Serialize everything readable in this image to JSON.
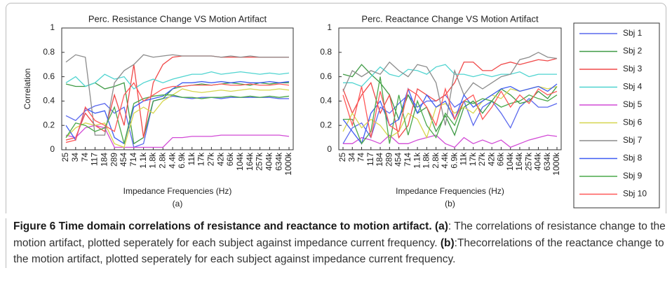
{
  "chart_data": [
    {
      "type": "line",
      "title": "Perc. Resistance Change VS Motion Artifact",
      "x_label": "Impedance Frequencies (Hz)",
      "sublabel": "(a)",
      "y_label": "Correlation",
      "categories": [
        "25",
        "34",
        "74",
        "117",
        "184",
        "289",
        "454",
        "714",
        "1.1k",
        "1.8k",
        "2.8k",
        "4.4k",
        "6.9k",
        "11k",
        "17k",
        "27k",
        "42k",
        "66k",
        "104k",
        "164k",
        "257k",
        "404k",
        "634k",
        "1000k"
      ],
      "ylim": [
        0,
        1
      ],
      "yticks": [
        0,
        0.2,
        0.4,
        0.6,
        0.8,
        1
      ],
      "series": [
        {
          "name": "Sbj 1",
          "color": "#5a68ee",
          "values": [
            0.28,
            0.24,
            0.32,
            0.36,
            0.38,
            0.3,
            0.35,
            0.02,
            0.05,
            0.4,
            0.42,
            0.44,
            0.43,
            0.42,
            0.43,
            0.43,
            0.42,
            0.43,
            0.43,
            0.43,
            0.43,
            0.43,
            0.42,
            0.42
          ]
        },
        {
          "name": "Sbj 2",
          "color": "#3f9a45",
          "values": [
            0.54,
            0.52,
            0.52,
            0.55,
            0.5,
            0.52,
            0.55,
            0.05,
            0.1,
            0.4,
            0.42,
            0.5,
            0.52,
            0.53,
            0.54,
            0.53,
            0.54,
            0.55,
            0.54,
            0.53,
            0.55,
            0.54,
            0.55,
            0.55
          ]
        },
        {
          "name": "Sbj 3",
          "color": "#f04848",
          "values": [
            0.08,
            0.1,
            0.3,
            0.2,
            0.15,
            0.45,
            0.2,
            0.7,
            0.1,
            0.55,
            0.7,
            0.76,
            0.77,
            0.77,
            0.77,
            0.77,
            0.76,
            0.76,
            0.76,
            0.76,
            0.76,
            0.76,
            0.76,
            0.76
          ]
        },
        {
          "name": "Sbj 4",
          "color": "#4fd4d0",
          "values": [
            0.55,
            0.6,
            0.52,
            0.55,
            0.62,
            0.58,
            0.6,
            0.5,
            0.55,
            0.58,
            0.55,
            0.58,
            0.6,
            0.62,
            0.62,
            0.64,
            0.62,
            0.63,
            0.64,
            0.63,
            0.62,
            0.63,
            0.62,
            0.63
          ]
        },
        {
          "name": "Sbj 5",
          "color": "#d24ad6",
          "values": [
            0.12,
            0.1,
            0.18,
            0.2,
            0.18,
            0.02,
            0.02,
            0.02,
            0.02,
            0.02,
            0.02,
            0.1,
            0.1,
            0.11,
            0.11,
            0.11,
            0.12,
            0.12,
            0.12,
            0.12,
            0.12,
            0.12,
            0.12,
            0.11
          ]
        },
        {
          "name": "Sbj 6",
          "color": "#d6d64e",
          "values": [
            0.1,
            0.18,
            0.22,
            0.2,
            0.22,
            0.05,
            0.02,
            0.3,
            0.35,
            0.3,
            0.4,
            0.45,
            0.5,
            0.48,
            0.47,
            0.48,
            0.49,
            0.48,
            0.49,
            0.5,
            0.49,
            0.49,
            0.5,
            0.49
          ]
        },
        {
          "name": "Sbj 7",
          "color": "#8c8c8c",
          "values": [
            0.72,
            0.78,
            0.76,
            0.12,
            0.12,
            0.55,
            0.65,
            0.7,
            0.78,
            0.76,
            0.77,
            0.78,
            0.77,
            0.77,
            0.77,
            0.77,
            0.76,
            0.77,
            0.76,
            0.77,
            0.76,
            0.76,
            0.76,
            0.76
          ]
        },
        {
          "name": "Sbj 8",
          "color": "#3e5cf2",
          "values": [
            0.2,
            0.08,
            0.34,
            0.3,
            0.32,
            0.1,
            0.05,
            0.35,
            0.4,
            0.42,
            0.44,
            0.5,
            0.55,
            0.55,
            0.56,
            0.55,
            0.56,
            0.55,
            0.56,
            0.55,
            0.55,
            0.56,
            0.55,
            0.56
          ]
        },
        {
          "name": "Sbj 9",
          "color": "#4aa84a",
          "values": [
            0.1,
            0.22,
            0.2,
            0.15,
            0.18,
            0.35,
            0.05,
            0.38,
            0.42,
            0.44,
            0.45,
            0.45,
            0.43,
            0.43,
            0.42,
            0.43,
            0.43,
            0.44,
            0.43,
            0.44,
            0.43,
            0.44,
            0.43,
            0.44
          ]
        },
        {
          "name": "Sbj 10",
          "color": "#ff5858",
          "values": [
            0.06,
            0.08,
            0.35,
            0.24,
            0.2,
            0.15,
            0.45,
            0.55,
            0.4,
            0.45,
            0.5,
            0.52,
            0.52,
            0.53,
            0.53,
            0.53,
            0.54,
            0.53,
            0.53,
            0.54,
            0.53,
            0.53,
            0.54,
            0.53
          ]
        }
      ]
    },
    {
      "type": "line",
      "title": "Perc. Reactance Change VS Motion Artifact",
      "x_label": "Impedance Frequencies (Hz)",
      "sublabel": "(b)",
      "categories": [
        "25",
        "34",
        "74",
        "117",
        "184",
        "289",
        "454",
        "714",
        "1.1k",
        "1.8k",
        "2.8k",
        "4.4k",
        "6.9k",
        "11k",
        "17k",
        "27k",
        "42k",
        "66k",
        "104k",
        "164k",
        "257k",
        "404k",
        "634k",
        "1000k"
      ],
      "ylim": [
        0,
        1
      ],
      "yticks": [
        0,
        0.2,
        0.4,
        0.6,
        0.8,
        1
      ],
      "series": [
        {
          "name": "Sbj 1",
          "color": "#5a68ee",
          "values": [
            0.05,
            0.18,
            0.22,
            0.1,
            0.35,
            0.3,
            0.38,
            0.45,
            0.35,
            0.4,
            0.4,
            0.45,
            0.35,
            0.4,
            0.2,
            0.35,
            0.4,
            0.3,
            0.18,
            0.35,
            0.42,
            0.35,
            0.35,
            0.38
          ]
        },
        {
          "name": "Sbj 2",
          "color": "#3f9a45",
          "values": [
            0.62,
            0.6,
            0.7,
            0.62,
            0.55,
            0.45,
            0.25,
            0.45,
            0.3,
            0.35,
            0.15,
            0.28,
            0.12,
            0.35,
            0.4,
            0.3,
            0.4,
            0.5,
            0.45,
            0.38,
            0.4,
            0.48,
            0.42,
            0.52
          ]
        },
        {
          "name": "Sbj 3",
          "color": "#f04848",
          "values": [
            0.5,
            0.3,
            0.45,
            0.55,
            0.3,
            0.45,
            0.1,
            0.2,
            0.5,
            0.45,
            0.4,
            0.45,
            0.55,
            0.72,
            0.72,
            0.65,
            0.65,
            0.7,
            0.72,
            0.7,
            0.72,
            0.74,
            0.73,
            0.75
          ]
        },
        {
          "name": "Sbj 4",
          "color": "#4fd4d0",
          "values": [
            0.55,
            0.55,
            0.52,
            0.6,
            0.68,
            0.62,
            0.6,
            0.66,
            0.65,
            0.62,
            0.68,
            0.7,
            0.62,
            0.62,
            0.6,
            0.62,
            0.6,
            0.62,
            0.62,
            0.64,
            0.6,
            0.62,
            0.62,
            0.62
          ]
        },
        {
          "name": "Sbj 5",
          "color": "#d24ad6",
          "values": [
            0.05,
            0.05,
            0.1,
            0.08,
            0.05,
            0.12,
            0.05,
            0.05,
            0.08,
            0.1,
            0.12,
            0.05,
            0.02,
            0.1,
            0.05,
            0.08,
            0.05,
            0.08,
            0.02,
            0.05,
            0.08,
            0.1,
            0.12,
            0.11
          ]
        },
        {
          "name": "Sbj 6",
          "color": "#d6d64e",
          "values": [
            0.15,
            0.3,
            0.18,
            0.25,
            0.2,
            0.1,
            0.15,
            0.3,
            0.25,
            0.1,
            0.35,
            0.38,
            0.3,
            0.35,
            0.3,
            0.4,
            0.45,
            0.42,
            0.5,
            0.48,
            0.5,
            0.52,
            0.5,
            0.52
          ]
        },
        {
          "name": "Sbj 7",
          "color": "#8c8c8c",
          "values": [
            0.48,
            0.65,
            0.6,
            0.65,
            0.62,
            0.72,
            0.65,
            0.6,
            0.7,
            0.68,
            0.55,
            0.2,
            0.65,
            0.45,
            0.55,
            0.5,
            0.55,
            0.6,
            0.62,
            0.74,
            0.76,
            0.8,
            0.76,
            0.75
          ]
        },
        {
          "name": "Sbj 8",
          "color": "#3e5cf2",
          "values": [
            0.25,
            0.15,
            0.05,
            0.3,
            0.4,
            0.2,
            0.25,
            0.5,
            0.3,
            0.45,
            0.35,
            0.4,
            0.25,
            0.45,
            0.35,
            0.4,
            0.45,
            0.5,
            0.52,
            0.48,
            0.5,
            0.52,
            0.48,
            0.54
          ]
        },
        {
          "name": "Sbj 9",
          "color": "#4aa84a",
          "values": [
            0.25,
            0.25,
            0.05,
            0.15,
            0.6,
            0.05,
            0.45,
            0.12,
            0.4,
            0.2,
            0.1,
            0.3,
            0.2,
            0.4,
            0.38,
            0.42,
            0.4,
            0.35,
            0.38,
            0.4,
            0.45,
            0.42,
            0.4,
            0.45
          ]
        },
        {
          "name": "Sbj 10",
          "color": "#ff5858",
          "values": [
            0.45,
            0.2,
            0.52,
            0.1,
            0.48,
            0.2,
            0.15,
            0.5,
            0.45,
            0.35,
            0.2,
            0.5,
            0.25,
            0.4,
            0.45,
            0.25,
            0.35,
            0.48,
            0.35,
            0.45,
            0.38,
            0.5,
            0.45,
            0.48
          ]
        }
      ]
    }
  ],
  "caption": {
    "title": "Figure 6 Time domain correlations of resistance and reactance to motion artifact.",
    "parts": [
      {
        "label": "(a)",
        "text": ": The correlations of resistance change to the motion artifact, plotted seperately for each subject against impedance current frequency."
      },
      {
        "label": "(b)",
        "text": ":Thecorrelations of the reactance change to the motion artifact, plotted seperately for each subject against impedance current frequency."
      }
    ]
  }
}
